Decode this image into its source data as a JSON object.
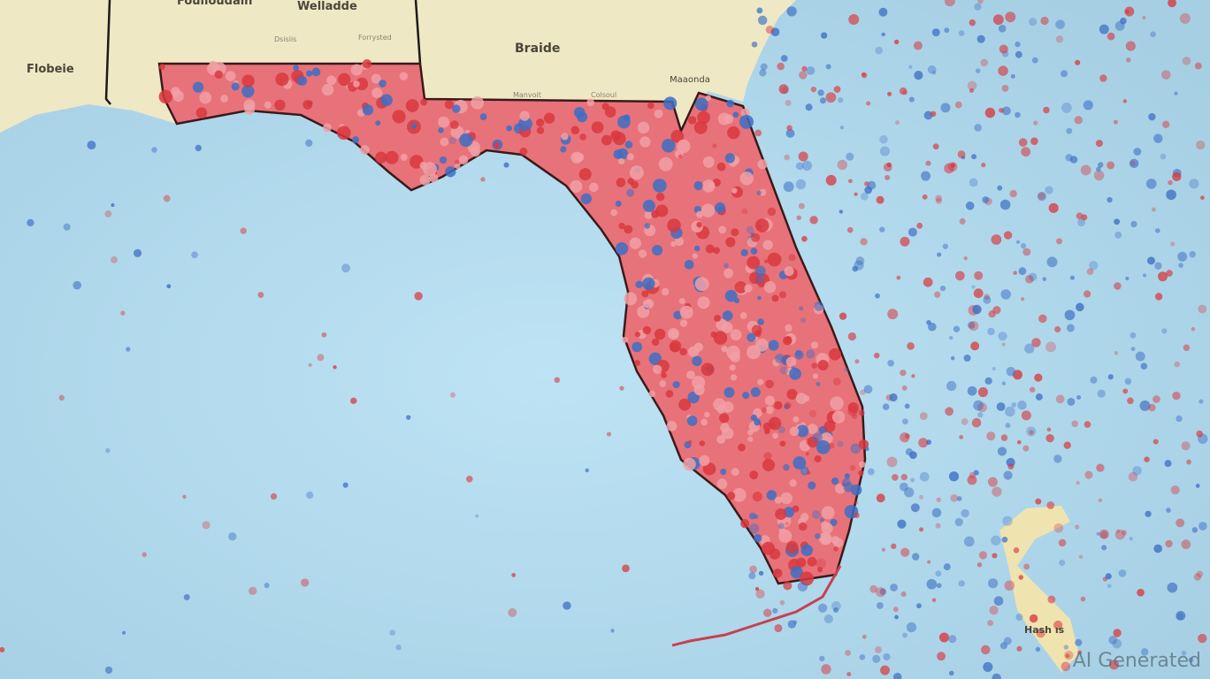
{
  "labels": {
    "top_left_cut": "Foulloudain",
    "state_a": "Welladde",
    "state_b": "Braide",
    "state_c": "Flobeie",
    "city_ne": "Maaonda",
    "island": "Hash ıs",
    "minor": [
      "Dsisiis",
      "Forrysted",
      "Manvoit",
      "Colsoul"
    ]
  },
  "watermark": "AI Generated",
  "colors": {
    "water": "#b4dbef",
    "land": "#efe8c4",
    "red": "#d8383e",
    "pink": "#f0a0a4",
    "blue": "#3d6ec4",
    "border": "#1a1a1a"
  }
}
